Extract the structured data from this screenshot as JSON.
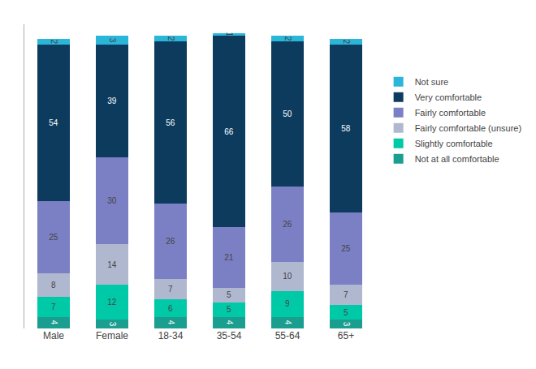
{
  "chart_data": {
    "type": "bar",
    "stacked": true,
    "categories": [
      "Male",
      "Female",
      "18-34",
      "35-54",
      "55-64",
      "65+"
    ],
    "series": [
      {
        "name": "Not at all comfortable",
        "color": "#1a9e8f",
        "values": [
          4,
          3,
          4,
          4,
          4,
          3
        ]
      },
      {
        "name": "Slightly comfortable",
        "color": "#00c9a7",
        "values": [
          7,
          12,
          6,
          5,
          9,
          5
        ]
      },
      {
        "name": "Fairly comfortable (unsure)",
        "color": "#b0b8d0",
        "values": [
          8,
          14,
          7,
          5,
          10,
          7
        ]
      },
      {
        "name": "Fairly comfortable",
        "color": "#7b7fc4",
        "values": [
          25,
          30,
          26,
          21,
          26,
          25
        ]
      },
      {
        "name": "Very comfortable",
        "color": "#0d3b5e",
        "values": [
          54,
          39,
          56,
          66,
          50,
          58
        ]
      },
      {
        "name": "Not sure",
        "color": "#29b6d8",
        "values": [
          2,
          3,
          2,
          1,
          2,
          2
        ]
      }
    ],
    "ylim": [
      0,
      105
    ],
    "data_labels": true,
    "tick_labels": "x",
    "legend": "right",
    "grid": false
  }
}
